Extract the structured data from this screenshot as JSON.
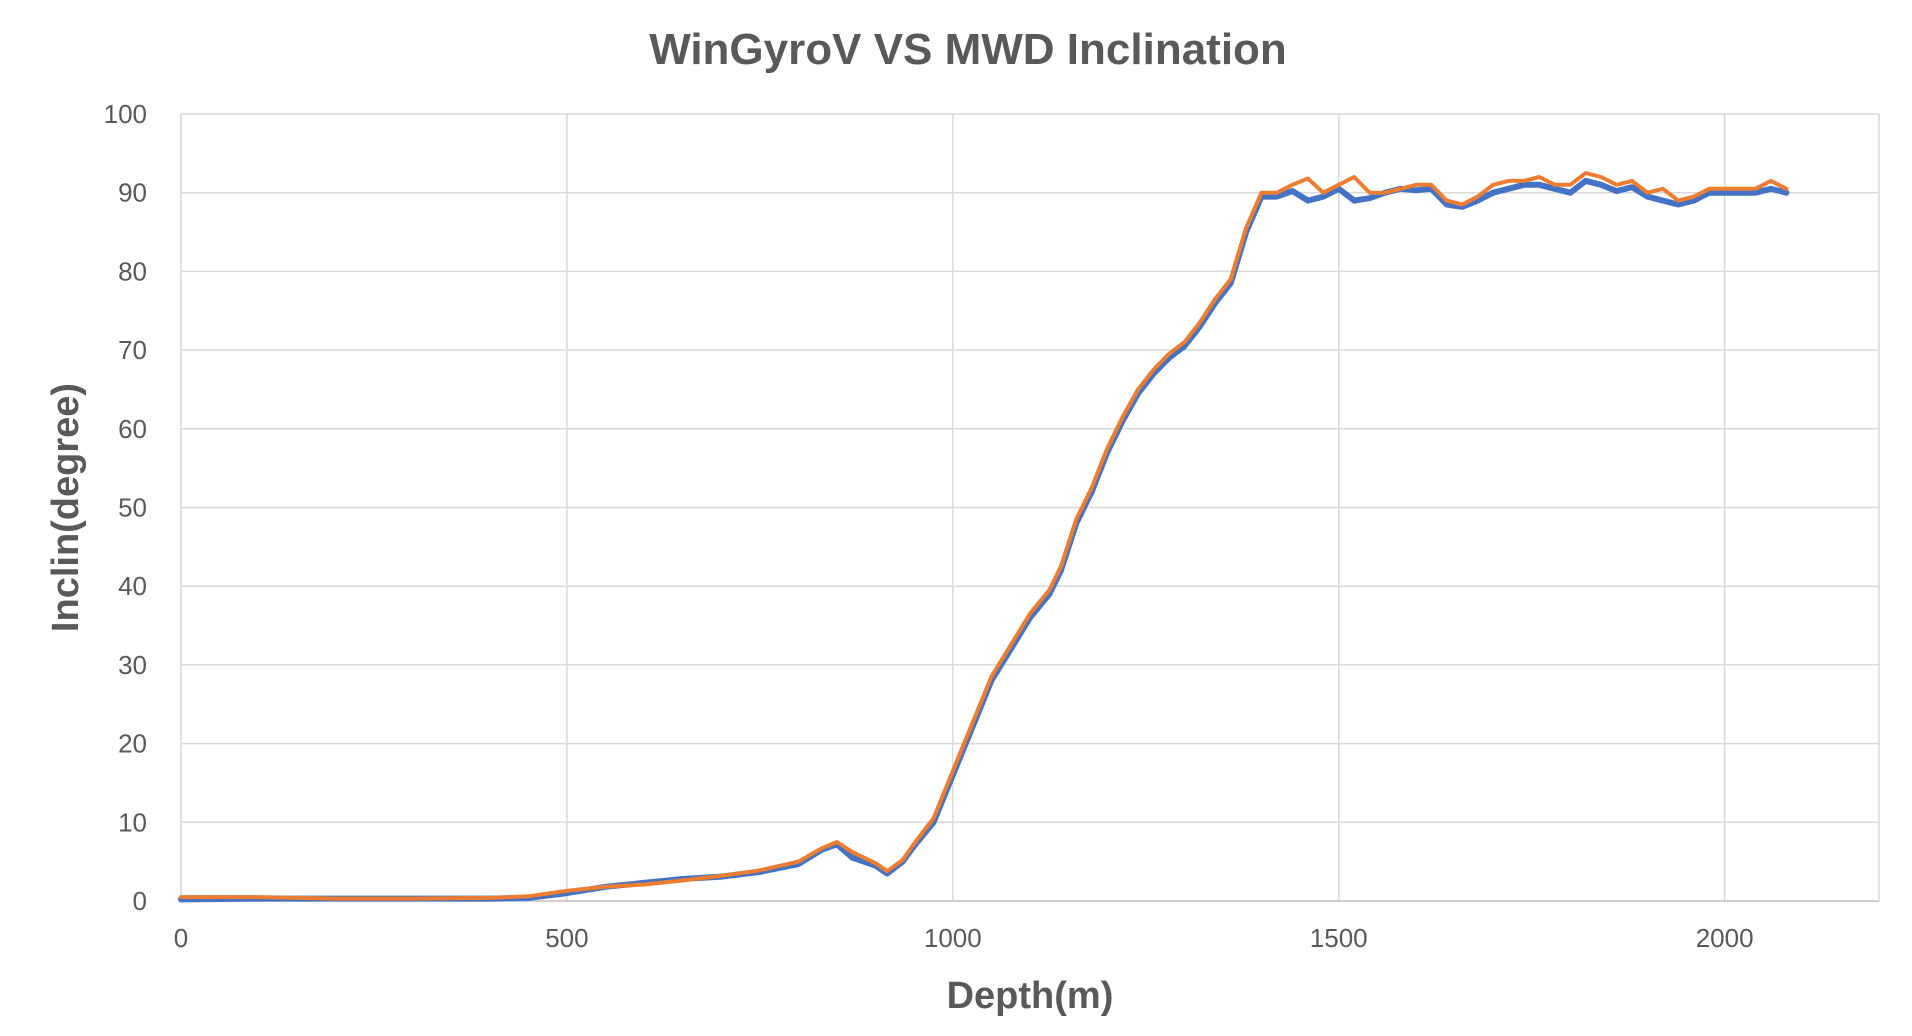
{
  "chart_data": {
    "type": "line",
    "title": "WinGyroV VS MWD Inclination",
    "xlabel": "Depth(m)",
    "ylabel": "Inclin(degree)",
    "xlim": [
      0,
      2200
    ],
    "ylim": [
      0,
      100
    ],
    "x_ticks": [
      "0",
      "500",
      "1000",
      "1500",
      "2000"
    ],
    "y_ticks": [
      "0",
      "10",
      "20",
      "30",
      "40",
      "50",
      "60",
      "70",
      "80",
      "90",
      "100"
    ],
    "grid": true,
    "series": [
      {
        "name": "WinGyroV",
        "color": "#4472c4",
        "x": [
          0,
          100,
          200,
          300,
          400,
          450,
          500,
          550,
          600,
          650,
          700,
          750,
          800,
          830,
          850,
          870,
          900,
          915,
          935,
          950,
          975,
          1000,
          1025,
          1050,
          1075,
          1100,
          1125,
          1140,
          1160,
          1180,
          1200,
          1220,
          1240,
          1260,
          1280,
          1300,
          1320,
          1340,
          1360,
          1380,
          1400,
          1420,
          1440,
          1460,
          1480,
          1500,
          1520,
          1540,
          1560,
          1580,
          1600,
          1620,
          1640,
          1660,
          1680,
          1700,
          1720,
          1740,
          1760,
          1780,
          1800,
          1820,
          1840,
          1860,
          1880,
          1900,
          1920,
          1940,
          1960,
          1980,
          2000,
          2020,
          2040,
          2060,
          2080
        ],
        "y": [
          0.2,
          0.3,
          0.3,
          0.3,
          0.3,
          0.4,
          1,
          1.8,
          2.3,
          2.8,
          3.1,
          3.7,
          4.7,
          6.5,
          7.2,
          5.5,
          4.5,
          3.5,
          5,
          7,
          10,
          16,
          22,
          28,
          32,
          36,
          39,
          42,
          48,
          52,
          57,
          61,
          64.5,
          67,
          69,
          70.5,
          73,
          76,
          78.5,
          85,
          89.5,
          89.5,
          90.2,
          89,
          89.5,
          90.5,
          89,
          89.3,
          90,
          90.5,
          90.3,
          90.5,
          88.5,
          88.2,
          89,
          90,
          90.5,
          91,
          91,
          90.5,
          90,
          91.5,
          91,
          90.2,
          90.7,
          89.5,
          89,
          88.5,
          89,
          90,
          90,
          90,
          90,
          90.5,
          90
        ]
      },
      {
        "name": "MWD",
        "color": "#ed7d31",
        "x": [
          0,
          100,
          200,
          300,
          400,
          450,
          500,
          550,
          600,
          650,
          700,
          750,
          800,
          830,
          850,
          870,
          900,
          915,
          935,
          950,
          975,
          1000,
          1025,
          1050,
          1075,
          1100,
          1125,
          1140,
          1160,
          1180,
          1200,
          1220,
          1240,
          1260,
          1280,
          1300,
          1320,
          1340,
          1360,
          1380,
          1400,
          1420,
          1440,
          1460,
          1480,
          1500,
          1520,
          1540,
          1560,
          1580,
          1600,
          1620,
          1640,
          1660,
          1680,
          1700,
          1720,
          1740,
          1760,
          1780,
          1800,
          1820,
          1840,
          1860,
          1880,
          1900,
          1920,
          1940,
          1960,
          1980,
          2000,
          2020,
          2040,
          2060,
          2080
        ],
        "y": [
          0.5,
          0.5,
          0.3,
          0.3,
          0.4,
          0.6,
          1.3,
          1.8,
          2.1,
          2.6,
          3.2,
          3.9,
          5,
          6.7,
          7.5,
          6.2,
          4.8,
          3.8,
          5.2,
          7.3,
          10.5,
          16.5,
          22.5,
          28.5,
          32.5,
          36.5,
          39.5,
          42.5,
          48.5,
          52.5,
          57.5,
          61.5,
          65,
          67.5,
          69.5,
          71,
          73.5,
          76.5,
          79,
          85.5,
          90,
          90,
          91,
          91.8,
          90,
          91,
          92,
          90,
          90,
          90.5,
          91,
          91,
          89,
          88.5,
          89.5,
          91,
          91.5,
          91.5,
          92,
          91,
          91,
          92.5,
          92,
          91,
          91.5,
          90,
          90.5,
          89,
          89.5,
          90.5,
          90.5,
          90.5,
          90.5,
          91.5,
          90.5
        ]
      }
    ]
  }
}
